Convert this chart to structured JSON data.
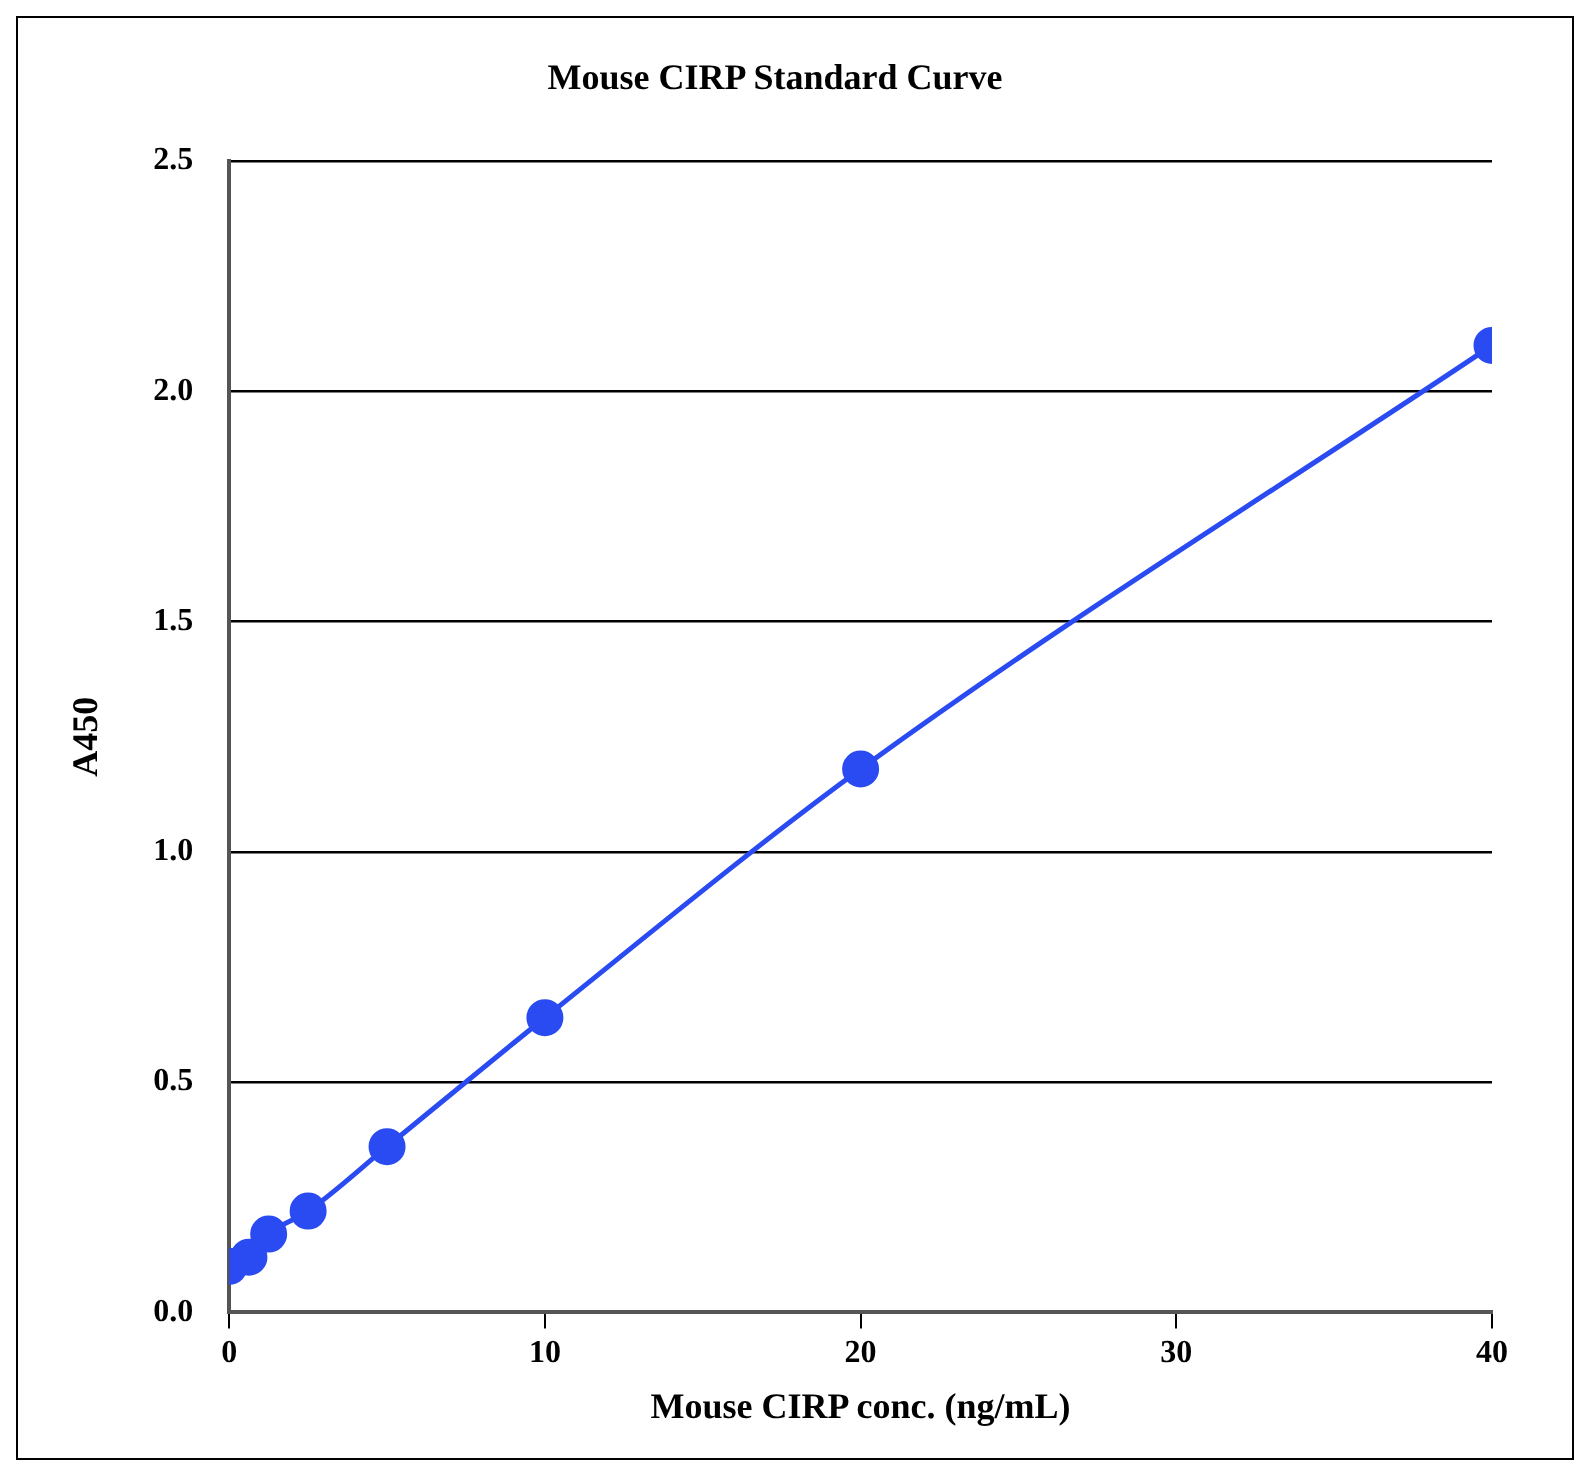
{
  "chart_data": {
    "type": "line",
    "title": "Mouse CIRP Standard Curve",
    "xlabel": "Mouse CIRP conc. (ng/mL)",
    "ylabel": "A450",
    "x": [
      0,
      0.625,
      1.25,
      2.5,
      5,
      10,
      20,
      40
    ],
    "series": [
      {
        "color": "#2b4bf2",
        "values": [
          0.1,
          0.12,
          0.17,
          0.22,
          0.36,
          0.64,
          1.18,
          2.1
        ]
      }
    ],
    "xlim": [
      0,
      40
    ],
    "xticks": [
      0,
      10,
      20,
      30,
      40
    ],
    "ylim": [
      0,
      2.5
    ],
    "yticks": [
      {
        "value": 0,
        "label": "0.0"
      },
      0.5,
      {
        "value": 1,
        "label": "1.0"
      },
      1.5,
      {
        "value": 2,
        "label": "2.0"
      },
      2.5
    ],
    "grid": "y",
    "legend": false,
    "marker": "circle",
    "line_style": "solid"
  }
}
